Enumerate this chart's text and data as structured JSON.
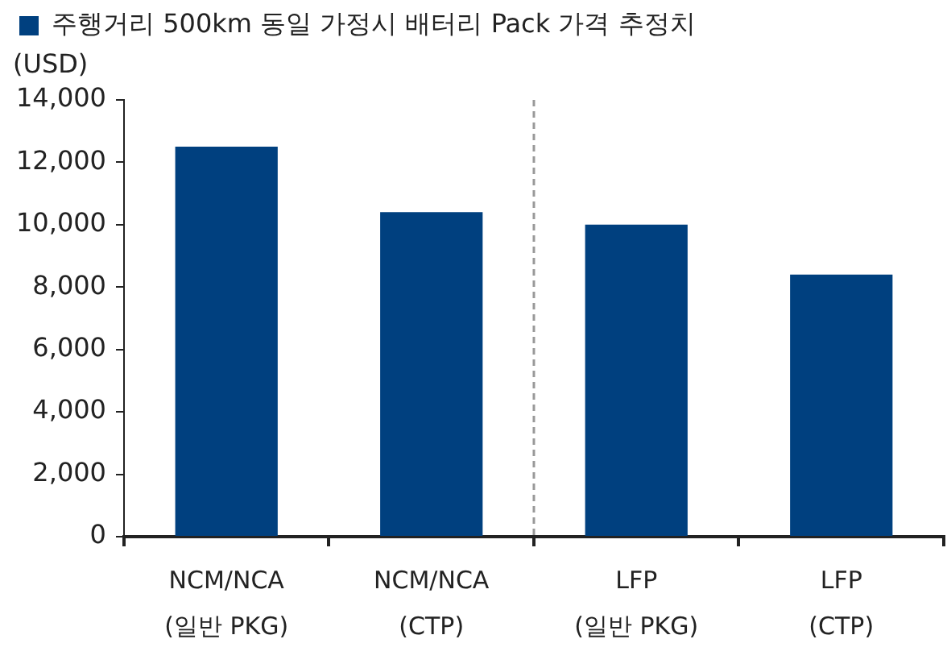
{
  "chart_data": {
    "type": "bar",
    "ylabel": "(USD)",
    "categories": [
      "NCM/NCA\n(일반 PKG)",
      "NCM/NCA\n(CTP)",
      "LFP\n(일반 PKG)",
      "LFP\n(CTP)"
    ],
    "series": [
      {
        "name": "주행거리 500km 동일 가정시 배터리 Pack 가격 추정치",
        "color": "#00407f",
        "values": [
          12500,
          10400,
          10000,
          8400
        ]
      }
    ],
    "ylim": [
      0,
      14000
    ],
    "yticks": [
      {
        "value": 0,
        "label": "0"
      },
      {
        "value": 2000,
        "label": "2,000"
      },
      {
        "value": 4000,
        "label": "4,000"
      },
      {
        "value": 6000,
        "label": "6,000"
      },
      {
        "value": 8000,
        "label": "8,000"
      },
      {
        "value": 10000,
        "label": "10,000"
      },
      {
        "value": 12000,
        "label": "12,000"
      },
      {
        "value": 14000,
        "label": "14,000"
      }
    ],
    "grid": false,
    "legend": "top"
  }
}
